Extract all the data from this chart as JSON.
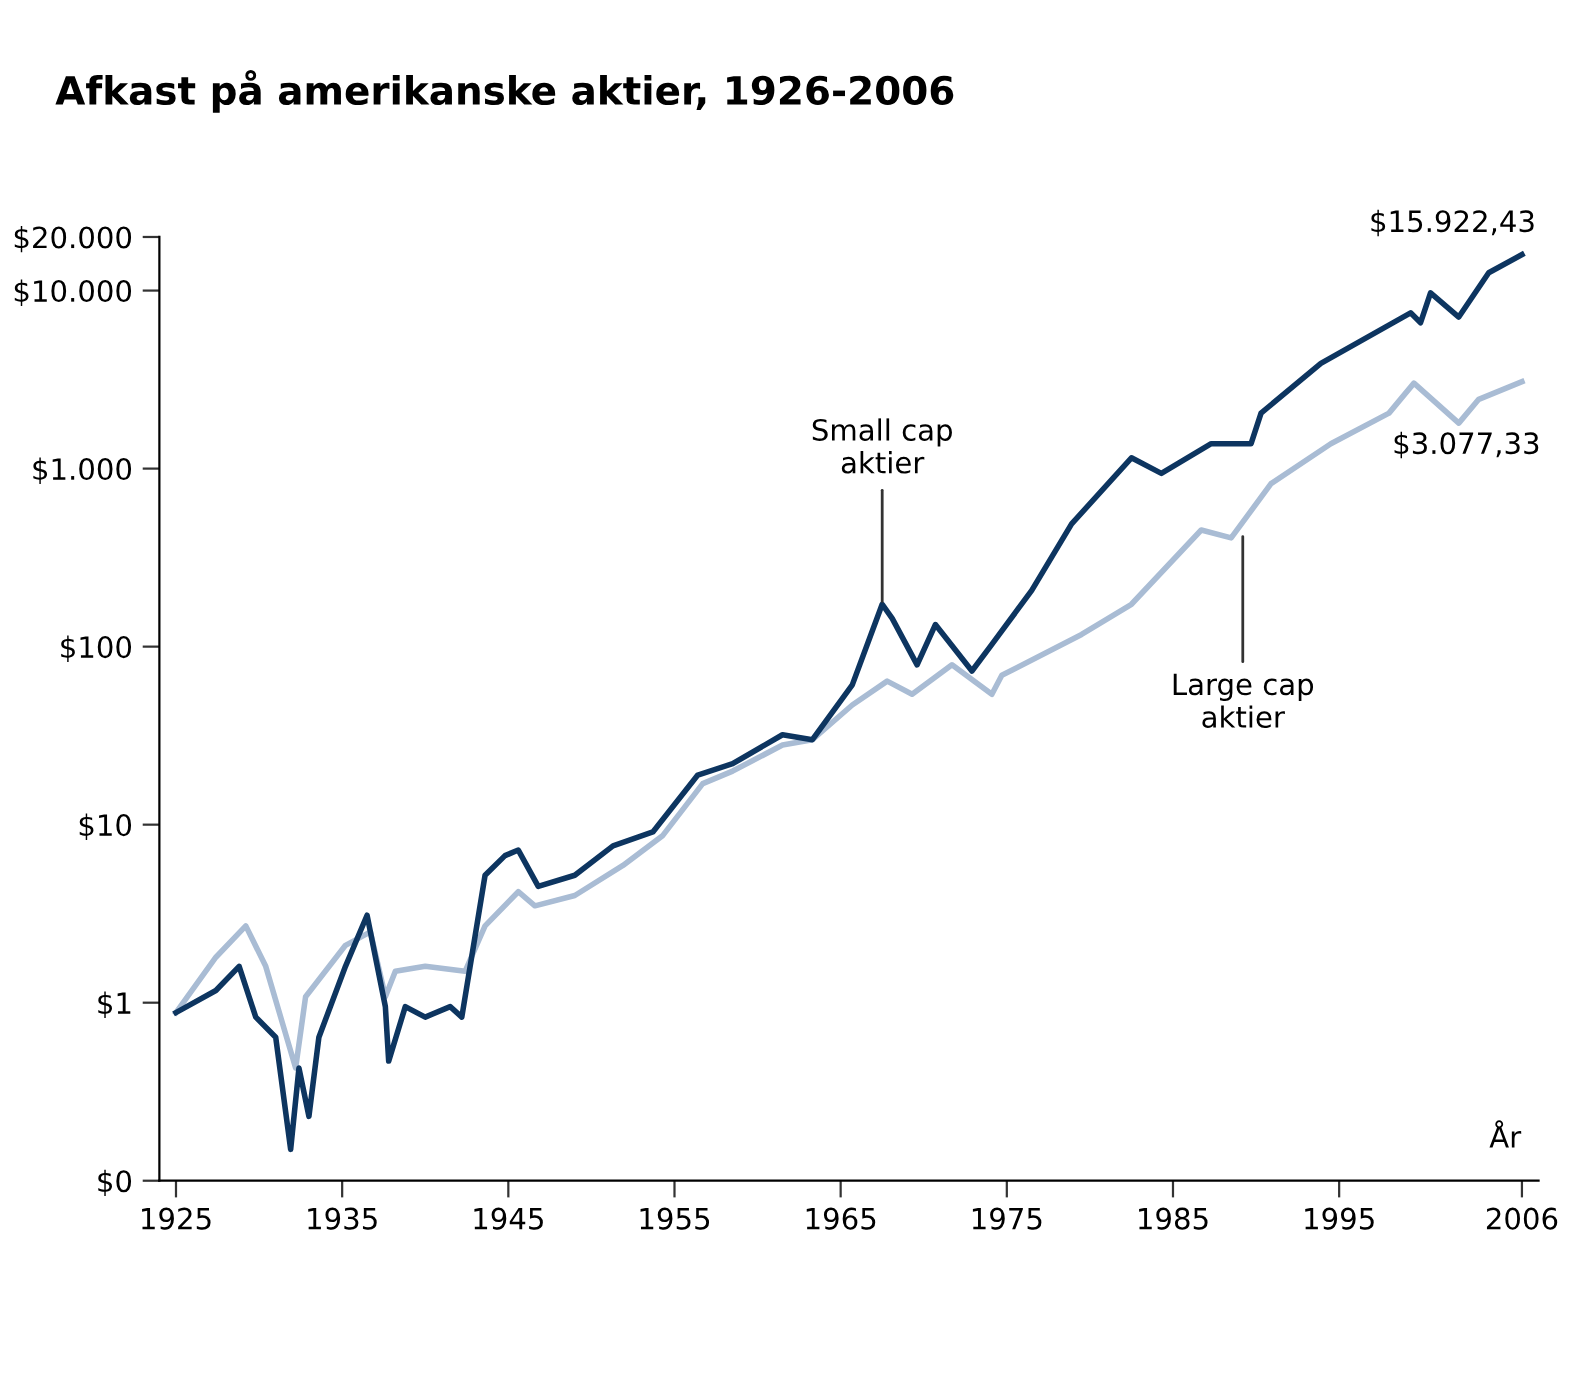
{
  "chart_data": {
    "type": "line",
    "title": "Afkast på amerikanske aktier, 1926-2006",
    "xlabel": "År",
    "log": "y",
    "grid": false,
    "legend": false,
    "marker": "none",
    "line_style": "solid",
    "xlim": [
      1924,
      2007
    ],
    "xticks": [
      1925,
      1935,
      1945,
      1955,
      1965,
      1975,
      1985,
      1995,
      2006
    ],
    "ylim": [
      0.1,
      20000
    ],
    "yticks": [
      {
        "value": 0.1,
        "label": "$0"
      },
      {
        "value": 1,
        "label": "$1"
      },
      {
        "value": 10,
        "label": "$10"
      },
      {
        "value": 100,
        "label": "$100"
      },
      {
        "value": 1000,
        "label": "$1.000"
      },
      {
        "value": 10000,
        "label": "$10.000"
      },
      {
        "value": 20000,
        "label": "$20.000"
      }
    ],
    "series": [
      {
        "color": "#a9bcd4",
        "x": [
          1925,
          1927.4,
          1929.2,
          1930.4,
          1932.2,
          1932.8,
          1935.2,
          1936.7,
          1937.6,
          1938.2,
          1940,
          1942.4,
          1943.6,
          1945.6,
          1946.6,
          1949,
          1951.9,
          1954.3,
          1956.7,
          1958.5,
          1961.5,
          1963.3,
          1965.7,
          1967.8,
          1969.3,
          1971.7,
          1974.1,
          1974.7,
          1979.5,
          1982.5,
          1986.7,
          1988.5,
          1990.9,
          1994.5,
          1998,
          1999.5,
          2002.2,
          2003.4,
          2006
        ],
        "values": [
          0.88,
          1.8,
          2.7,
          1.6,
          0.43,
          1.08,
          2.1,
          2.5,
          1.08,
          1.5,
          1.6,
          1.5,
          2.7,
          4.2,
          3.5,
          4.0,
          5.9,
          8.7,
          17,
          20,
          28,
          30,
          47,
          64,
          54,
          79,
          54,
          69,
          117,
          173,
          452,
          408,
          823,
          1380,
          2050,
          3020,
          1800,
          2450,
          3077.33
        ]
      },
      {
        "color": "#0d3560",
        "x": [
          1925,
          1927.4,
          1928.8,
          1929.8,
          1931,
          1931.9,
          1932.4,
          1933,
          1933.6,
          1935.2,
          1936.5,
          1937.6,
          1937.8,
          1938.8,
          1940,
          1941.5,
          1942.2,
          1943.6,
          1944.8,
          1945.6,
          1946.8,
          1949,
          1951.3,
          1953.7,
          1956.4,
          1958.5,
          1961.5,
          1963.3,
          1965.7,
          1967.5,
          1968.1,
          1969.6,
          1970.7,
          1972.9,
          1974.1,
          1976.5,
          1978.9,
          1982.5,
          1984.3,
          1987.3,
          1989.7,
          1990.3,
          1993.9,
          1999.3,
          1999.9,
          2000.5,
          2002.2,
          2004,
          2006
        ],
        "values": [
          0.88,
          1.17,
          1.6,
          0.83,
          0.64,
          0.15,
          0.43,
          0.23,
          0.64,
          1.6,
          3.1,
          0.95,
          0.47,
          0.95,
          0.83,
          0.95,
          0.83,
          5.2,
          6.7,
          7.2,
          4.5,
          5.2,
          7.6,
          9.1,
          19,
          22,
          32,
          30,
          61,
          173,
          144,
          79,
          133,
          73,
          103,
          207,
          489,
          1150,
          940,
          1380,
          1380,
          2050,
          3900,
          7500,
          6600,
          9700,
          7100,
          12600,
          15922.43
        ]
      }
    ],
    "annotations": [
      {
        "text": "Small cap\naktier",
        "x": 1967.5,
        "y": 173
      },
      {
        "text": "Large cap\naktier",
        "x": 1989.2,
        "y": 430
      },
      {
        "text": "$15.922,43",
        "x": 2006,
        "y": 15922.43
      },
      {
        "text": "$3.077,33",
        "x": 2006,
        "y": 3077.33
      }
    ]
  }
}
